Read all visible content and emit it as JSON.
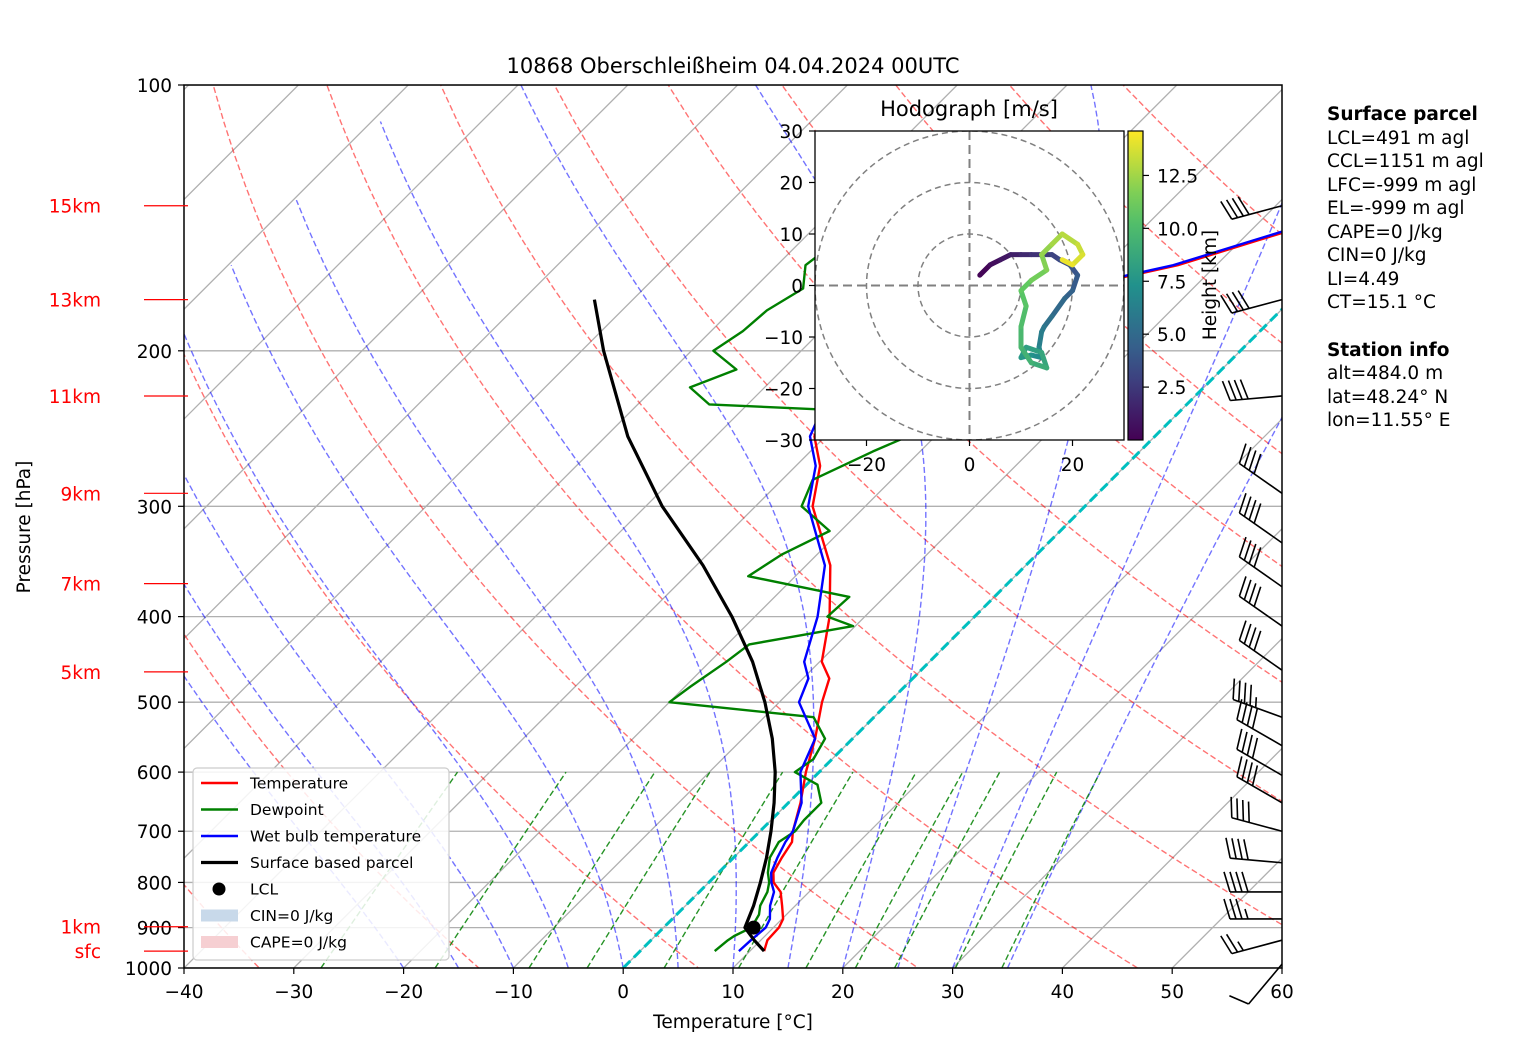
{
  "chart_data": [
    {
      "type": "line",
      "title": "10868 Oberschleißheim 04.04.2024 00UTC",
      "xlabel": "Temperature [°C]",
      "ylabel": "Pressure [hPa]",
      "xlim": [
        -40,
        60
      ],
      "ylim": [
        1000,
        100
      ],
      "y_scale": "log",
      "skew": "skew-T",
      "grid": true,
      "x_ticks": [
        "−40",
        "−30",
        "−20",
        "−10",
        "0",
        "10",
        "20",
        "30",
        "40",
        "50",
        "60"
      ],
      "y_ticks": [
        {
          "p": 100,
          "label": "100"
        },
        {
          "p": 200,
          "label": "200"
        },
        {
          "p": 300,
          "label": "300"
        },
        {
          "p": 400,
          "label": "400"
        },
        {
          "p": 500,
          "label": "500"
        },
        {
          "p": 600,
          "label": "600"
        },
        {
          "p": 700,
          "label": "700"
        },
        {
          "p": 800,
          "label": "800"
        },
        {
          "p": 900,
          "label": "900"
        },
        {
          "p": 1000,
          "label": "1000"
        }
      ],
      "height_labels": [
        {
          "p": 137,
          "label": "15km"
        },
        {
          "p": 175,
          "label": "13km"
        },
        {
          "p": 225,
          "label": "11km"
        },
        {
          "p": 290,
          "label": "9km"
        },
        {
          "p": 367,
          "label": "7km"
        },
        {
          "p": 462,
          "label": "5km"
        },
        {
          "p": 898,
          "label": "1km"
        },
        {
          "p": 957,
          "label": "sfc"
        }
      ],
      "height_label_color": "#ff0000",
      "series": [
        {
          "name": "Temperature",
          "color": "#ff0000",
          "points": [
            [
              957,
              11.3
            ],
            [
              930,
              10.6
            ],
            [
              900,
              10.5
            ],
            [
              880,
              10.1
            ],
            [
              850,
              8.8
            ],
            [
              820,
              7.4
            ],
            [
              800,
              5.9
            ],
            [
              780,
              5.0
            ],
            [
              750,
              4.4
            ],
            [
              720,
              3.9
            ],
            [
              700,
              3.0
            ],
            [
              650,
              1.1
            ],
            [
              600,
              -1.2
            ],
            [
              550,
              -3.4
            ],
            [
              500,
              -6.1
            ],
            [
              470,
              -7.6
            ],
            [
              450,
              -9.8
            ],
            [
              400,
              -13.2
            ],
            [
              350,
              -17.8
            ],
            [
              300,
              -24.8
            ],
            [
              270,
              -27.8
            ],
            [
              250,
              -31.0
            ],
            [
              240,
              -31.8
            ],
            [
              220,
              -27.5
            ],
            [
              200,
              -27.5
            ],
            [
              190,
              -24.5
            ],
            [
              180,
              -23.7
            ],
            [
              170,
              -21.0
            ],
            [
              160,
              -13.5
            ],
            [
              150,
              -8.5
            ],
            [
              145,
              -5.8
            ],
            [
              140,
              -7.0
            ],
            [
              137,
              -7.2
            ]
          ]
        },
        {
          "name": "Dewpoint",
          "color": "#008000",
          "points": [
            [
              957,
              6.8
            ],
            [
              930,
              7.0
            ],
            [
              920,
              7.2
            ],
            [
              900,
              8.0
            ],
            [
              870,
              7.5
            ],
            [
              850,
              6.8
            ],
            [
              820,
              6.2
            ],
            [
              800,
              5.5
            ],
            [
              780,
              4.5
            ],
            [
              750,
              3.3
            ],
            [
              720,
              2.7
            ],
            [
              700,
              3.2
            ],
            [
              680,
              3.0
            ],
            [
              650,
              3.0
            ],
            [
              620,
              1.0
            ],
            [
              600,
              -2.2
            ],
            [
              580,
              -1.7
            ],
            [
              550,
              -2.5
            ],
            [
              520,
              -5.5
            ],
            [
              500,
              -20.0
            ],
            [
              480,
              -19.5
            ],
            [
              450,
              -18.5
            ],
            [
              430,
              -18.0
            ],
            [
              410,
              -10.2
            ],
            [
              400,
              -13.4
            ],
            [
              380,
              -13.2
            ],
            [
              360,
              -24.3
            ],
            [
              340,
              -23.2
            ],
            [
              320,
              -21.0
            ],
            [
              300,
              -25.8
            ],
            [
              280,
              -27.2
            ],
            [
              260,
              -24.3
            ],
            [
              250,
              -22.5
            ],
            [
              240,
              -9.0
            ],
            [
              230,
              -43.5
            ],
            [
              220,
              -46.8
            ],
            [
              210,
              -44.2
            ],
            [
              200,
              -48.0
            ],
            [
              190,
              -47.1
            ],
            [
              180,
              -46.8
            ],
            [
              170,
              -45.5
            ],
            [
              160,
              -47.4
            ],
            [
              150,
              -46.7
            ],
            [
              140,
              -45.8
            ],
            [
              135,
              -45.9
            ]
          ]
        },
        {
          "name": "Wet bulb temperature",
          "color": "#0000ff",
          "points": [
            [
              957,
              9.0
            ],
            [
              930,
              9.1
            ],
            [
              900,
              9.3
            ],
            [
              880,
              8.9
            ],
            [
              850,
              7.7
            ],
            [
              820,
              6.8
            ],
            [
              800,
              5.7
            ],
            [
              780,
              4.8
            ],
            [
              750,
              4.0
            ],
            [
              720,
              3.3
            ],
            [
              700,
              3.0
            ],
            [
              650,
              1.2
            ],
            [
              600,
              -1.7
            ],
            [
              550,
              -3.4
            ],
            [
              500,
              -8.2
            ],
            [
              470,
              -9.5
            ],
            [
              450,
              -11.4
            ],
            [
              400,
              -14.3
            ],
            [
              350,
              -18.3
            ],
            [
              300,
              -25.2
            ],
            [
              270,
              -28.2
            ],
            [
              250,
              -31.4
            ],
            [
              240,
              -32.2
            ],
            [
              220,
              -27.9
            ],
            [
              200,
              -27.9
            ],
            [
              190,
              -24.9
            ],
            [
              180,
              -24.1
            ],
            [
              170,
              -21.4
            ],
            [
              160,
              -13.9
            ],
            [
              150,
              -8.9
            ],
            [
              145,
              -6.2
            ],
            [
              140,
              -7.4
            ],
            [
              137,
              -7.6
            ]
          ]
        },
        {
          "name": "Surface based parcel",
          "color": "#000000",
          "points": [
            [
              957,
              11.3
            ],
            [
              930,
              9.4
            ],
            [
              900,
              7.4
            ],
            [
              850,
              6.2
            ],
            [
              800,
              4.7
            ],
            [
              750,
              3.0
            ],
            [
              700,
              1.0
            ],
            [
              650,
              -1.3
            ],
            [
              600,
              -4.0
            ],
            [
              550,
              -7.3
            ],
            [
              500,
              -11.3
            ],
            [
              450,
              -16.1
            ],
            [
              400,
              -22.1
            ],
            [
              350,
              -29.4
            ],
            [
              300,
              -38.5
            ],
            [
              250,
              -48.0
            ],
            [
              200,
              -58.0
            ],
            [
              175,
              -63.5
            ]
          ]
        }
      ],
      "lcl_marker": {
        "name": "LCL",
        "p": 900,
        "t": 8.2
      },
      "legend": {
        "placement": "lower-left",
        "entries": [
          {
            "label": "Temperature",
            "kind": "line",
            "color": "#ff0000"
          },
          {
            "label": "Dewpoint",
            "kind": "line",
            "color": "#008000"
          },
          {
            "label": "Wet bulb temperature",
            "kind": "line",
            "color": "#0000ff"
          },
          {
            "label": "Surface based parcel",
            "kind": "line",
            "color": "#000000"
          },
          {
            "label": "LCL",
            "kind": "dot",
            "color": "#000000"
          },
          {
            "label": "CIN=0 J/kg",
            "kind": "patch",
            "color": "#c8d9ea"
          },
          {
            "label": "CAPE=0 J/kg",
            "kind": "patch",
            "color": "#f6cfd2"
          }
        ]
      },
      "wind_barbs": [
        {
          "p": 137,
          "speed_kt": 40,
          "dir_deg": 255
        },
        {
          "p": 175,
          "speed_kt": 40,
          "dir_deg": 255
        },
        {
          "p": 225,
          "speed_kt": 40,
          "dir_deg": 265
        },
        {
          "p": 290,
          "speed_kt": 40,
          "dir_deg": 305
        },
        {
          "p": 330,
          "speed_kt": 40,
          "dir_deg": 305
        },
        {
          "p": 370,
          "speed_kt": 40,
          "dir_deg": 305
        },
        {
          "p": 410,
          "speed_kt": 40,
          "dir_deg": 305
        },
        {
          "p": 460,
          "speed_kt": 40,
          "dir_deg": 305
        },
        {
          "p": 520,
          "speed_kt": 45,
          "dir_deg": 290
        },
        {
          "p": 560,
          "speed_kt": 40,
          "dir_deg": 300
        },
        {
          "p": 605,
          "speed_kt": 40,
          "dir_deg": 300
        },
        {
          "p": 650,
          "speed_kt": 40,
          "dir_deg": 300
        },
        {
          "p": 700,
          "speed_kt": 40,
          "dir_deg": 285
        },
        {
          "p": 760,
          "speed_kt": 40,
          "dir_deg": 275
        },
        {
          "p": 820,
          "speed_kt": 40,
          "dir_deg": 270
        },
        {
          "p": 880,
          "speed_kt": 35,
          "dir_deg": 270
        },
        {
          "p": 930,
          "speed_kt": 25,
          "dir_deg": 255
        },
        {
          "p": 990,
          "speed_kt": 10,
          "dir_deg": 220
        }
      ],
      "reference_lines": {
        "dry_adiabat_color": "#ff0000",
        "moist_adiabat_color": "#0000ff",
        "mixing_ratio_color": "#008000",
        "zero_isotherm_color": "#00bfbf"
      }
    },
    {
      "type": "line",
      "title": "Hodograph [m/s]",
      "xlim": [
        -30,
        30
      ],
      "ylim": [
        -30,
        30
      ],
      "x_ticks": [
        "−20",
        "0",
        "20"
      ],
      "y_ticks": [
        "30",
        "20",
        "10",
        "0",
        "−10",
        "−20",
        "−30"
      ],
      "rings": [
        10,
        20,
        30
      ],
      "colorbar": {
        "label": "Height [km]",
        "ticks": [
          "2.5",
          "5.0",
          "7.5",
          "10.0",
          "12.5"
        ],
        "range": [
          0,
          14.6
        ],
        "colormap": "viridis"
      },
      "points": [
        [
          2,
          2,
          0.2
        ],
        [
          4,
          4,
          0.6
        ],
        [
          6,
          5,
          1.0
        ],
        [
          8,
          6,
          1.4
        ],
        [
          10,
          6,
          1.8
        ],
        [
          12,
          6,
          2.2
        ],
        [
          14,
          6,
          2.6
        ],
        [
          16,
          6,
          3.0
        ],
        [
          17.5,
          5,
          3.4
        ],
        [
          19.5,
          4,
          3.8
        ],
        [
          21,
          2,
          4.2
        ],
        [
          20,
          -1,
          4.6
        ],
        [
          18.5,
          -2.5,
          5.0
        ],
        [
          16,
          -6,
          5.4
        ],
        [
          14.5,
          -8,
          5.8
        ],
        [
          14,
          -9,
          6.2
        ],
        [
          13.5,
          -12,
          6.6
        ],
        [
          14,
          -14,
          7.0
        ],
        [
          12,
          -13.5,
          7.4
        ],
        [
          10,
          -14,
          7.8
        ],
        [
          11,
          -12,
          8.2
        ],
        [
          14,
          -13,
          8.6
        ],
        [
          15,
          -16,
          9.0
        ],
        [
          12,
          -15,
          9.4
        ],
        [
          10,
          -12,
          9.8
        ],
        [
          10,
          -8,
          10.2
        ],
        [
          11,
          -4,
          10.6
        ],
        [
          10,
          -1,
          11.0
        ],
        [
          12,
          1,
          11.4
        ],
        [
          15,
          3,
          11.8
        ],
        [
          14,
          6,
          12.2
        ],
        [
          16,
          8,
          12.6
        ],
        [
          18,
          10,
          13.0
        ],
        [
          21,
          8,
          13.4
        ],
        [
          22,
          6,
          13.8
        ],
        [
          20,
          4,
          14.2
        ],
        [
          18,
          5,
          14.6
        ]
      ]
    }
  ],
  "surface_parcel": {
    "header": "Surface parcel",
    "lines": [
      "LCL=491 m agl",
      "CCL=1151 m agl",
      "LFC=-999 m agl",
      "EL=-999 m agl",
      "CAPE=0 J/kg",
      "CIN=0 J/kg",
      "LI=4.49",
      "CT=15.1 °C"
    ]
  },
  "station_info": {
    "header": "Station info",
    "lines": [
      "alt=484.0 m",
      "lat=48.24° N",
      "lon=11.55° E"
    ]
  }
}
